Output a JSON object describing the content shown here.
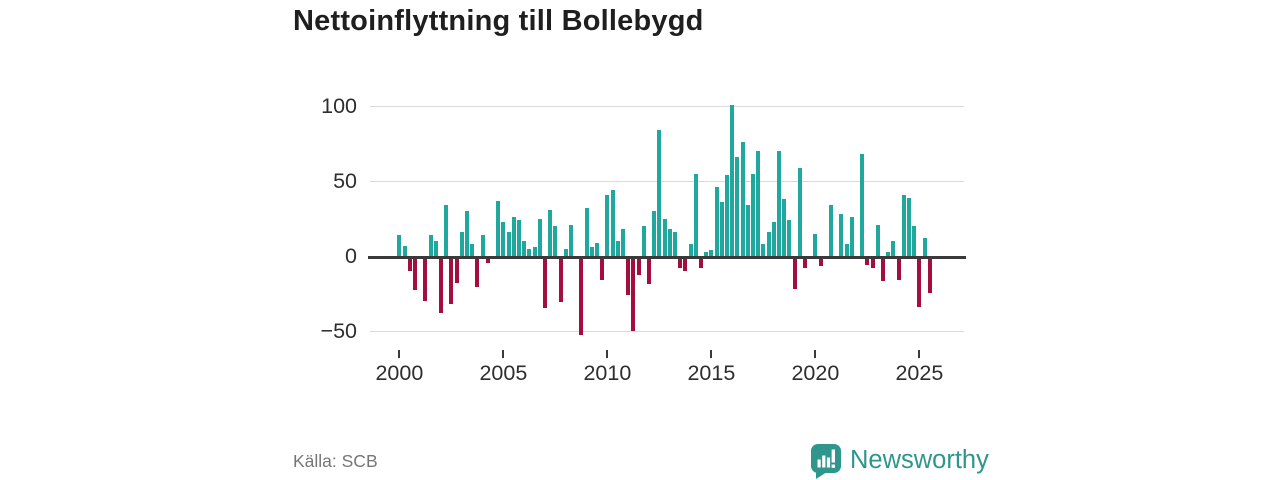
{
  "page": {
    "title": "Nettoinflyttning till Bollebygd",
    "source": "Källa: SCB",
    "brand_name": "Newsworthy"
  },
  "colors": {
    "positive": "#20a79e",
    "negative": "#a60d3f",
    "axis": "#3a3a3a",
    "grid": "#dadada",
    "brand": "#2f968e",
    "tick_label": "#2e2e2e",
    "title": "#1f1f1f",
    "source_text": "#767676"
  },
  "chart_data": {
    "type": "bar",
    "title": "Nettoinflyttning till Bollebygd",
    "xlabel": "",
    "ylabel": "",
    "frequency": "quarterly",
    "start": "2000Q1",
    "end": "2025Q3",
    "x_tick_labels": [
      "2000",
      "2005",
      "2010",
      "2015",
      "2020",
      "2025"
    ],
    "y_tick_labels": [
      "100",
      "50",
      "0",
      "−50"
    ],
    "yticks": [
      100,
      50,
      0,
      -50
    ],
    "ylim": [
      -55,
      105
    ],
    "grid": "horizontal",
    "legend": "none",
    "values_by_year": {
      "2000": [
        14,
        7,
        -8,
        -21
      ],
      "2001": [
        0,
        -28,
        14,
        10
      ],
      "2002": [
        -36,
        34,
        -30,
        -16
      ],
      "2003": [
        16,
        30,
        8,
        -19
      ],
      "2004": [
        14,
        -3,
        0,
        37
      ],
      "2005": [
        23,
        16,
        26,
        24
      ],
      "2006": [
        10,
        5,
        6,
        25
      ],
      "2007": [
        -33,
        31,
        20,
        -29
      ],
      "2008": [
        5,
        21,
        0,
        -51
      ],
      "2009": [
        32,
        6,
        9,
        -14
      ],
      "2010": [
        41,
        44,
        10,
        18
      ],
      "2011": [
        -24,
        -48,
        -11,
        20
      ],
      "2012": [
        -17,
        30,
        84,
        25
      ],
      "2013": [
        18,
        16,
        -6,
        -8
      ],
      "2014": [
        8,
        55,
        -6,
        3
      ],
      "2015": [
        4,
        46,
        36,
        54
      ],
      "2016": [
        101,
        66,
        76,
        34
      ],
      "2017": [
        55,
        70,
        8,
        16
      ],
      "2018": [
        23,
        70,
        38,
        24
      ],
      "2019": [
        -20,
        59,
        -6,
        0
      ],
      "2020": [
        15,
        -5,
        0,
        34
      ],
      "2021": [
        0,
        28,
        8,
        26
      ],
      "2022": [
        0,
        68,
        -4,
        -6
      ],
      "2023": [
        21,
        -15,
        3,
        10
      ],
      "2024": [
        -14,
        41,
        39,
        20
      ],
      "2025": [
        -32,
        12,
        -23
      ]
    }
  }
}
